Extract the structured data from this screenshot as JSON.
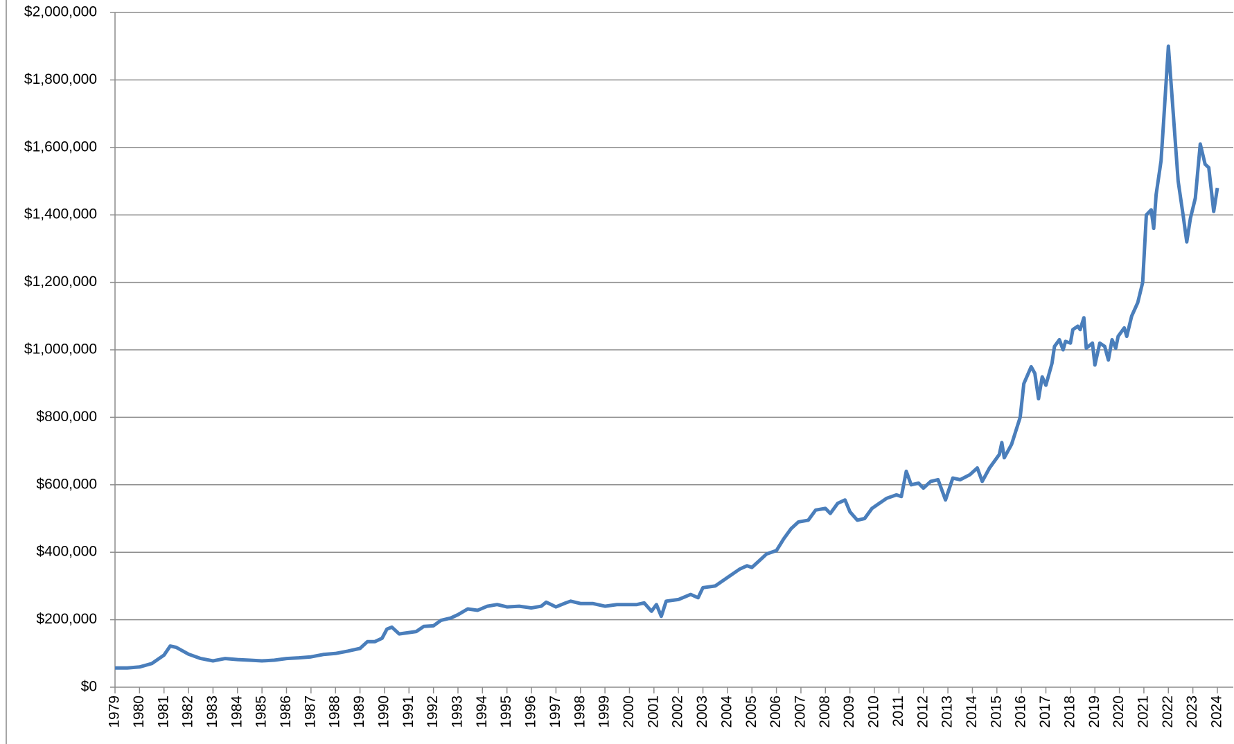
{
  "chart_data": {
    "type": "line",
    "color": "#4a7ebb",
    "grid": true,
    "xlim": [
      1979,
      2024
    ],
    "xticks": [
      1979,
      1980,
      1981,
      1982,
      1983,
      1984,
      1985,
      1986,
      1987,
      1988,
      1989,
      1990,
      1991,
      1992,
      1993,
      1994,
      1995,
      1996,
      1997,
      1998,
      1999,
      2000,
      2001,
      2002,
      2003,
      2004,
      2005,
      2006,
      2007,
      2008,
      2009,
      2010,
      2011,
      2012,
      2013,
      2014,
      2015,
      2016,
      2017,
      2018,
      2019,
      2020,
      2021,
      2022,
      2023,
      2024
    ],
    "ylim": [
      0,
      2000000
    ],
    "yticks": [
      {
        "value": 0,
        "label": "$0"
      },
      {
        "value": 200000,
        "label": "$200,000"
      },
      {
        "value": 400000,
        "label": "$400,000"
      },
      {
        "value": 600000,
        "label": "$600,000"
      },
      {
        "value": 800000,
        "label": "$800,000"
      },
      {
        "value": 1000000,
        "label": "$1,000,000"
      },
      {
        "value": 1200000,
        "label": "$1,200,000"
      },
      {
        "value": 1400000,
        "label": "$1,400,000"
      },
      {
        "value": 1600000,
        "label": "$1,600,000"
      },
      {
        "value": 1800000,
        "label": "$1,800,000"
      },
      {
        "value": 2000000,
        "label": "$2,000,000"
      }
    ],
    "x": [
      1979.0,
      1979.5,
      1980.0,
      1980.5,
      1981.0,
      1981.25,
      1981.5,
      1982.0,
      1982.5,
      1983.0,
      1983.5,
      1984.0,
      1984.5,
      1985.0,
      1985.5,
      1986.0,
      1986.5,
      1987.0,
      1987.5,
      1988.0,
      1988.5,
      1989.0,
      1989.3,
      1989.6,
      1989.9,
      1990.1,
      1990.3,
      1990.6,
      1991.0,
      1991.3,
      1991.6,
      1992.0,
      1992.3,
      1992.7,
      1993.0,
      1993.4,
      1993.8,
      1994.2,
      1994.6,
      1995.0,
      1995.5,
      1996.0,
      1996.4,
      1996.6,
      1997.0,
      1997.4,
      1997.6,
      1998.0,
      1998.5,
      1999.0,
      1999.5,
      2000.0,
      2000.3,
      2000.6,
      2000.9,
      2001.1,
      2001.3,
      2001.5,
      2002.0,
      2002.5,
      2002.8,
      2003.0,
      2003.5,
      2004.0,
      2004.5,
      2004.8,
      2005.0,
      2005.3,
      2005.6,
      2006.0,
      2006.3,
      2006.6,
      2006.9,
      2007.3,
      2007.6,
      2008.0,
      2008.2,
      2008.5,
      2008.8,
      2009.0,
      2009.3,
      2009.6,
      2009.9,
      2010.2,
      2010.5,
      2010.9,
      2011.1,
      2011.3,
      2011.5,
      2011.8,
      2012.0,
      2012.3,
      2012.6,
      2012.9,
      2013.2,
      2013.5,
      2013.9,
      2014.2,
      2014.4,
      2014.7,
      2015.1,
      2015.2,
      2015.3,
      2015.6,
      2015.95,
      2016.1,
      2016.4,
      2016.55,
      2016.7,
      2016.85,
      2017.0,
      2017.25,
      2017.35,
      2017.55,
      2017.7,
      2017.8,
      2018.0,
      2018.1,
      2018.3,
      2018.4,
      2018.55,
      2018.65,
      2018.9,
      2019.0,
      2019.2,
      2019.4,
      2019.55,
      2019.7,
      2019.85,
      2019.95,
      2020.2,
      2020.3,
      2020.5,
      2020.75,
      2020.95,
      2021.1,
      2021.3,
      2021.4,
      2021.5,
      2021.7,
      2021.8,
      2022.0,
      2022.4,
      2022.6,
      2022.75,
      2022.9,
      2023.1,
      2023.3,
      2023.5,
      2023.65,
      2023.85,
      2024.0
    ],
    "values": [
      57000,
      57000,
      60000,
      70000,
      95000,
      122000,
      118000,
      98000,
      85000,
      78000,
      85000,
      82000,
      80000,
      78000,
      80000,
      85000,
      87000,
      90000,
      97000,
      100000,
      107000,
      115000,
      135000,
      135000,
      145000,
      172000,
      178000,
      158000,
      162000,
      165000,
      180000,
      182000,
      198000,
      205000,
      215000,
      232000,
      228000,
      240000,
      245000,
      238000,
      240000,
      235000,
      240000,
      252000,
      238000,
      250000,
      255000,
      248000,
      248000,
      240000,
      245000,
      245000,
      245000,
      250000,
      225000,
      245000,
      210000,
      255000,
      260000,
      275000,
      265000,
      295000,
      300000,
      325000,
      350000,
      360000,
      355000,
      375000,
      395000,
      405000,
      440000,
      470000,
      490000,
      495000,
      525000,
      530000,
      515000,
      545000,
      555000,
      520000,
      495000,
      500000,
      530000,
      545000,
      560000,
      570000,
      565000,
      640000,
      600000,
      605000,
      590000,
      610000,
      615000,
      555000,
      620000,
      615000,
      630000,
      650000,
      610000,
      650000,
      690000,
      725000,
      680000,
      720000,
      800000,
      900000,
      950000,
      930000,
      855000,
      920000,
      895000,
      960000,
      1010000,
      1030000,
      1000000,
      1025000,
      1020000,
      1060000,
      1070000,
      1060000,
      1095000,
      1005000,
      1020000,
      955000,
      1020000,
      1010000,
      970000,
      1030000,
      1005000,
      1040000,
      1065000,
      1040000,
      1100000,
      1140000,
      1200000,
      1400000,
      1415000,
      1360000,
      1460000,
      1560000,
      1670000,
      1900000,
      1500000,
      1400000,
      1320000,
      1390000,
      1450000,
      1610000,
      1550000,
      1540000,
      1410000,
      1480000
    ]
  }
}
